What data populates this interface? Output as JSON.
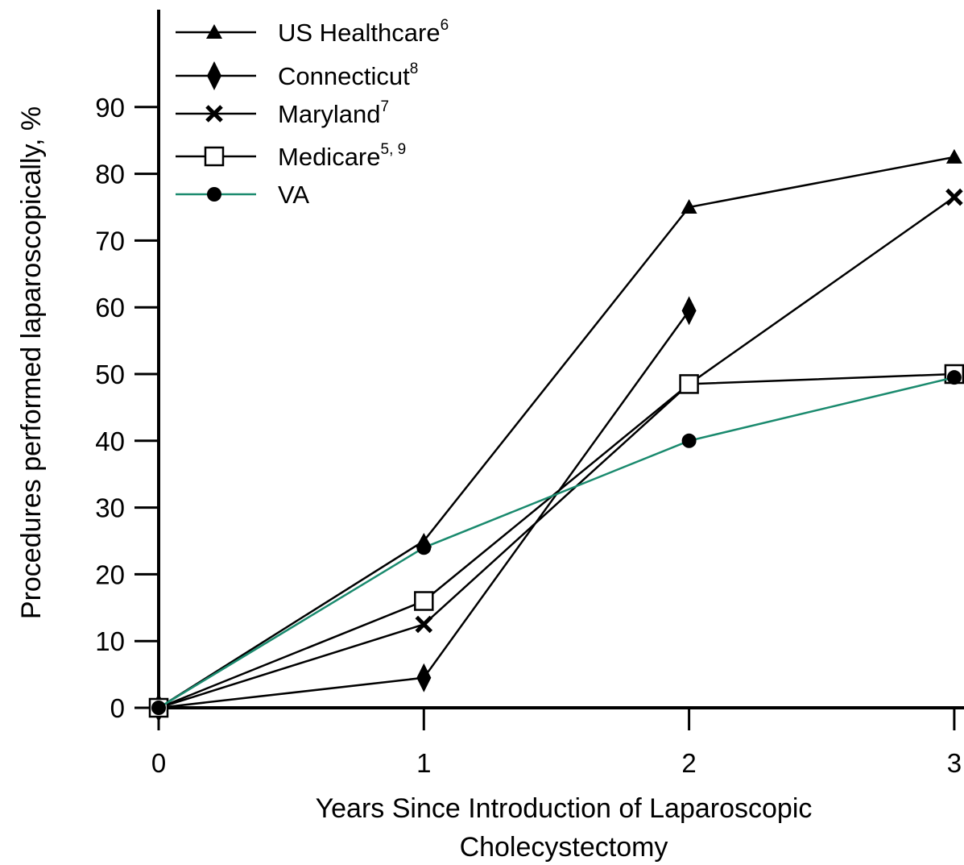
{
  "chart_data": {
    "type": "line",
    "xlabel": "Years Since Introduction of Laparoscopic Cholecystectomy",
    "xlabel_lines": [
      "Years Since Introduction of Laparoscopic",
      "Cholecystectomy"
    ],
    "ylabel": "Procedures performed laparoscopically, %",
    "xlim": [
      0,
      3
    ],
    "ylim": [
      0,
      100
    ],
    "x_ticks": [
      0,
      1,
      2,
      3
    ],
    "y_ticks": [
      0,
      10,
      20,
      30,
      40,
      50,
      60,
      70,
      80,
      90
    ],
    "grid": false,
    "legend_position": "top-left",
    "series": [
      {
        "name": "US Healthcare",
        "name_text": "US Healthcare",
        "superscript": "6",
        "marker": "triangle",
        "color": "#000000",
        "points": [
          [
            0,
            0
          ],
          [
            1,
            25
          ],
          [
            2,
            75
          ],
          [
            3,
            82.5
          ]
        ]
      },
      {
        "name": "Connecticut",
        "name_text": "Connecticut",
        "superscript": "8",
        "marker": "diamond",
        "color": "#000000",
        "points": [
          [
            0,
            0
          ],
          [
            1,
            4.5
          ],
          [
            2,
            59.5
          ]
        ]
      },
      {
        "name": "Maryland",
        "name_text": "Maryland",
        "superscript": "7",
        "marker": "x",
        "color": "#000000",
        "points": [
          [
            0,
            0
          ],
          [
            1,
            12.5
          ],
          [
            2,
            48.5
          ],
          [
            3,
            76.5
          ]
        ]
      },
      {
        "name": "Medicare",
        "name_text": "Medicare",
        "superscript": "5, 9",
        "marker": "open-square",
        "color": "#000000",
        "points": [
          [
            0,
            0
          ],
          [
            1,
            16
          ],
          [
            2,
            48.5
          ],
          [
            3,
            50
          ]
        ]
      },
      {
        "name": "VA",
        "name_text": "VA",
        "superscript": "",
        "marker": "filled-circle",
        "color": "#1a8a6e",
        "points": [
          [
            0,
            0
          ],
          [
            1,
            24
          ],
          [
            2,
            40
          ],
          [
            3,
            49.5
          ]
        ]
      }
    ]
  }
}
